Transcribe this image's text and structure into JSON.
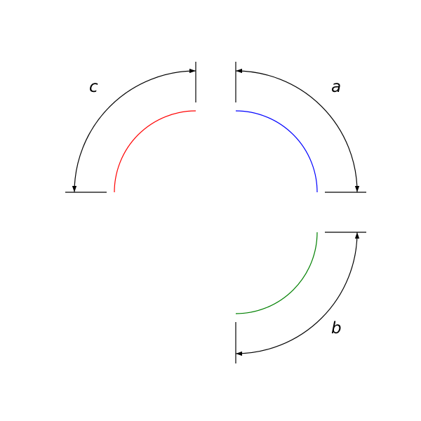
{
  "diagram": {
    "arcs": [
      {
        "id": "a",
        "label": "a",
        "color": "#0000ff",
        "quadrant": "top-right"
      },
      {
        "id": "b",
        "label": "b",
        "color": "#008000",
        "quadrant": "bottom-right"
      },
      {
        "id": "c",
        "label": "c",
        "color": "#ff0000",
        "quadrant": "top-left"
      }
    ],
    "dimension_color": "#000000"
  }
}
